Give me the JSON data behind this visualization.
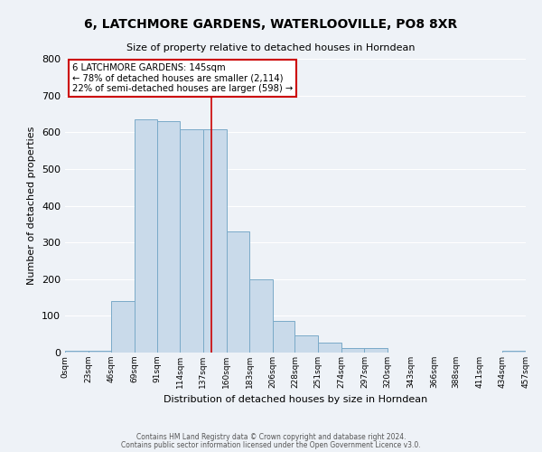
{
  "title": "6, LATCHMORE GARDENS, WATERLOOVILLE, PO8 8XR",
  "subtitle": "Size of property relative to detached houses in Horndean",
  "xlabel": "Distribution of detached houses by size in Horndean",
  "ylabel": "Number of detached properties",
  "bar_color": "#c9daea",
  "bar_edge_color": "#7aaac8",
  "background_color": "#eef2f7",
  "grid_color": "#ffffff",
  "bin_edges": [
    0,
    23,
    46,
    69,
    91,
    114,
    137,
    160,
    183,
    206,
    228,
    251,
    274,
    297,
    320,
    343,
    366,
    388,
    411,
    434,
    457
  ],
  "bin_labels": [
    "0sqm",
    "23sqm",
    "46sqm",
    "69sqm",
    "91sqm",
    "114sqm",
    "137sqm",
    "160sqm",
    "183sqm",
    "206sqm",
    "228sqm",
    "251sqm",
    "274sqm",
    "297sqm",
    "320sqm",
    "343sqm",
    "366sqm",
    "388sqm",
    "411sqm",
    "434sqm",
    "457sqm"
  ],
  "heights": [
    5,
    5,
    140,
    635,
    630,
    608,
    608,
    330,
    200,
    85,
    48,
    28,
    12,
    12,
    0,
    0,
    0,
    0,
    0,
    5
  ],
  "vline_x": 145,
  "vline_color": "#cc0000",
  "annotation_title": "6 LATCHMORE GARDENS: 145sqm",
  "annotation_line1": "← 78% of detached houses are smaller (2,114)",
  "annotation_line2": "22% of semi-detached houses are larger (598) →",
  "annotation_box_color": "#cc0000",
  "ylim": [
    0,
    800
  ],
  "yticks": [
    0,
    100,
    200,
    300,
    400,
    500,
    600,
    700,
    800
  ],
  "footer1": "Contains HM Land Registry data © Crown copyright and database right 2024.",
  "footer2": "Contains public sector information licensed under the Open Government Licence v3.0."
}
